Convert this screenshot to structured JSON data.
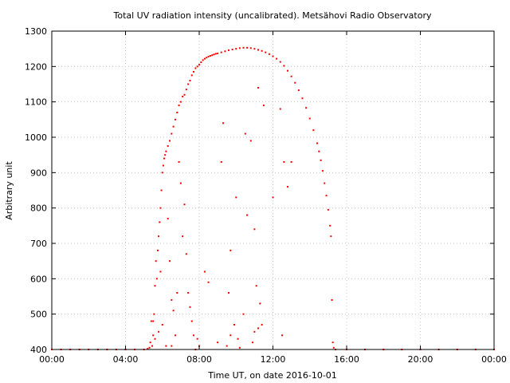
{
  "chart_data": {
    "type": "scatter",
    "title": "Total UV radiation intensity (uncalibrated). Metsähovi Radio Observatory",
    "xlabel": "Time UT, on date 2016-10-01",
    "ylabel": "Arbitrary unit",
    "xlim": [
      0,
      24
    ],
    "ylim": [
      400,
      1300
    ],
    "grid": true,
    "legend": "none",
    "color": "#ff0000",
    "x_ticks": [
      {
        "value": 0,
        "label": "00:00"
      },
      {
        "value": 4,
        "label": "04:00"
      },
      {
        "value": 8,
        "label": "08:00"
      },
      {
        "value": 12,
        "label": "12:00"
      },
      {
        "value": 16,
        "label": "16:00"
      },
      {
        "value": 20,
        "label": "20:00"
      },
      {
        "value": 24,
        "label": "00:00"
      }
    ],
    "y_ticks": [
      400,
      500,
      600,
      700,
      800,
      900,
      1000,
      1100,
      1200,
      1300
    ],
    "series": [
      {
        "points": [
          [
            0.0,
            400
          ],
          [
            0.5,
            400
          ],
          [
            1.0,
            400
          ],
          [
            1.5,
            400
          ],
          [
            2.0,
            400
          ],
          [
            2.5,
            400
          ],
          [
            3.0,
            400
          ],
          [
            3.5,
            400
          ],
          [
            4.0,
            400
          ],
          [
            4.5,
            400
          ],
          [
            5.0,
            400
          ],
          [
            5.2,
            402
          ],
          [
            5.3,
            405
          ],
          [
            5.35,
            420
          ],
          [
            5.45,
            410
          ],
          [
            5.5,
            480
          ],
          [
            5.55,
            500
          ],
          [
            5.6,
            580
          ],
          [
            5.65,
            650
          ],
          [
            5.7,
            600
          ],
          [
            5.75,
            680
          ],
          [
            5.8,
            720
          ],
          [
            5.85,
            760
          ],
          [
            5.9,
            800
          ],
          [
            5.95,
            850
          ],
          [
            6.0,
            900
          ],
          [
            6.05,
            920
          ],
          [
            6.1,
            940
          ],
          [
            6.15,
            950
          ],
          [
            6.2,
            960
          ],
          [
            6.3,
            975
          ],
          [
            6.4,
            990
          ],
          [
            6.5,
            1010
          ],
          [
            6.6,
            1030
          ],
          [
            6.7,
            1050
          ],
          [
            6.8,
            1070
          ],
          [
            6.9,
            1090
          ],
          [
            7.0,
            1100
          ],
          [
            7.1,
            1115
          ],
          [
            7.2,
            1120
          ],
          [
            7.3,
            1135
          ],
          [
            7.4,
            1150
          ],
          [
            7.5,
            1160
          ],
          [
            7.6,
            1175
          ],
          [
            7.7,
            1185
          ],
          [
            7.8,
            1195
          ],
          [
            7.9,
            1200
          ],
          [
            8.0,
            1205
          ],
          [
            8.1,
            1212
          ],
          [
            8.2,
            1218
          ],
          [
            8.3,
            1222
          ],
          [
            8.4,
            1225
          ],
          [
            8.5,
            1228
          ],
          [
            8.6,
            1230
          ],
          [
            8.7,
            1232
          ],
          [
            8.8,
            1234
          ],
          [
            8.9,
            1236
          ],
          [
            9.0,
            1237
          ],
          [
            9.2,
            1240
          ],
          [
            9.4,
            1243
          ],
          [
            9.6,
            1246
          ],
          [
            9.8,
            1248
          ],
          [
            10.0,
            1250
          ],
          [
            10.2,
            1252
          ],
          [
            10.4,
            1253
          ],
          [
            10.6,
            1253
          ],
          [
            10.8,
            1252
          ],
          [
            11.0,
            1250
          ],
          [
            11.2,
            1247
          ],
          [
            11.4,
            1244
          ],
          [
            11.6,
            1240
          ],
          [
            11.8,
            1235
          ],
          [
            12.0,
            1229
          ],
          [
            12.2,
            1222
          ],
          [
            12.4,
            1213
          ],
          [
            12.6,
            1202
          ],
          [
            12.8,
            1188
          ],
          [
            13.0,
            1172
          ],
          [
            13.2,
            1154
          ],
          [
            13.4,
            1133
          ],
          [
            13.6,
            1110
          ],
          [
            13.8,
            1083
          ],
          [
            14.0,
            1053
          ],
          [
            14.2,
            1020
          ],
          [
            14.4,
            983
          ],
          [
            14.5,
            960
          ],
          [
            14.6,
            935
          ],
          [
            14.7,
            905
          ],
          [
            14.8,
            870
          ],
          [
            14.9,
            835
          ],
          [
            15.0,
            795
          ],
          [
            15.1,
            750
          ],
          [
            15.15,
            720
          ],
          [
            15.2,
            540
          ],
          [
            15.25,
            420
          ],
          [
            15.3,
            405
          ],
          [
            15.4,
            400
          ],
          [
            16.0,
            400
          ],
          [
            17.0,
            400
          ],
          [
            18.0,
            400
          ],
          [
            19.0,
            400
          ],
          [
            20.0,
            400
          ],
          [
            21.0,
            400
          ],
          [
            22.0,
            400
          ],
          [
            23.0,
            400
          ],
          [
            24.0,
            400
          ],
          [
            5.4,
            480
          ],
          [
            5.5,
            440
          ],
          [
            5.6,
            430
          ],
          [
            5.8,
            450
          ],
          [
            5.9,
            620
          ],
          [
            6.0,
            470
          ],
          [
            6.2,
            410
          ],
          [
            6.3,
            770
          ],
          [
            6.4,
            650
          ],
          [
            6.5,
            540
          ],
          [
            6.6,
            510
          ],
          [
            6.7,
            440
          ],
          [
            6.8,
            560
          ],
          [
            6.9,
            930
          ],
          [
            7.0,
            870
          ],
          [
            7.1,
            720
          ],
          [
            7.2,
            810
          ],
          [
            7.3,
            670
          ],
          [
            7.4,
            560
          ],
          [
            7.5,
            520
          ],
          [
            7.6,
            480
          ],
          [
            7.7,
            440
          ],
          [
            8.0,
            410
          ],
          [
            8.3,
            620
          ],
          [
            8.5,
            590
          ],
          [
            9.0,
            420
          ],
          [
            9.2,
            930
          ],
          [
            9.3,
            1040
          ],
          [
            9.6,
            560
          ],
          [
            9.7,
            680
          ],
          [
            10.0,
            830
          ],
          [
            10.1,
            430
          ],
          [
            10.5,
            1010
          ],
          [
            10.6,
            780
          ],
          [
            10.8,
            990
          ],
          [
            11.0,
            740
          ],
          [
            11.1,
            580
          ],
          [
            11.2,
            1140
          ],
          [
            11.3,
            530
          ],
          [
            11.5,
            1090
          ],
          [
            12.0,
            830
          ],
          [
            12.4,
            1080
          ],
          [
            12.6,
            930
          ],
          [
            12.8,
            860
          ],
          [
            13.0,
            930
          ],
          [
            12.5,
            440
          ],
          [
            9.5,
            410
          ],
          [
            10.2,
            405
          ],
          [
            10.9,
            420
          ],
          [
            11.2,
            460
          ],
          [
            11.4,
            470
          ],
          [
            11.0,
            450
          ],
          [
            10.4,
            500
          ],
          [
            9.9,
            470
          ],
          [
            9.7,
            440
          ],
          [
            7.8,
            400
          ],
          [
            7.9,
            430
          ],
          [
            6.5,
            410
          ]
        ]
      }
    ]
  }
}
